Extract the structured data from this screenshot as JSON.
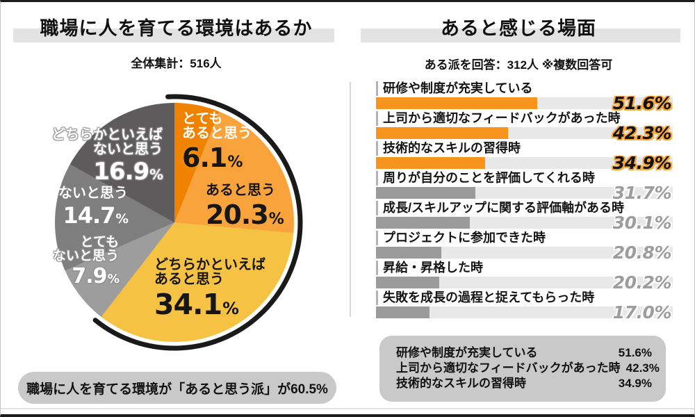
{
  "left": {
    "title": "職場に人を育てる環境はあるか",
    "subtitle": "全体集計：516人",
    "footer": "職場に人を育てる環境が「あると思う派」が60.5%"
  },
  "right": {
    "title": "あると感じる場面",
    "subtitle": "ある派を回答：312人 ※複数回答可",
    "summary_rows": [
      {
        "label": "研修や制度が充実している",
        "value": "51.6%"
      },
      {
        "label": "上司から適切なフィードバックがあった時",
        "value": "42.3%"
      },
      {
        "label": "技術的なスキルの習得時",
        "value": "34.9%"
      }
    ]
  },
  "colors": {
    "accent_orange": "#f7941e",
    "bar_gray": "#9b9b9b",
    "bar_track": "#e8e8e8",
    "band_gray": "#e3e3e3",
    "pill_gray": "#c9c9c9",
    "arc_black": "#1a1a1a"
  },
  "chart_data": [
    {
      "type": "pie",
      "title": "職場に人を育てる環境はあるか",
      "sample_note": "全体集計：516人",
      "unit": "%",
      "start_angle": "top, clockwise",
      "highlight_arc": {
        "covers_percent": 60.5,
        "color": "#1a1a1a"
      },
      "segments": [
        {
          "id": "totemo-aru",
          "label": "とてもあると思う",
          "lines": [
            "とても",
            "あると思う"
          ],
          "value": 6.1,
          "color": "#ef8200"
        },
        {
          "id": "aru",
          "label": "あると思う",
          "lines": [
            "あると思う"
          ],
          "value": 20.3,
          "color": "#f8a33b"
        },
        {
          "id": "dochiraka-aru",
          "label": "どちらかといえばあると思う",
          "lines": [
            "どちらかといえば",
            "あると思う"
          ],
          "value": 34.1,
          "color": "#f5c243"
        },
        {
          "id": "totemo-nai",
          "label": "とてもないと思う",
          "lines": [
            "とても",
            "ないと思う"
          ],
          "value": 7.9,
          "color": "#9e9d9d"
        },
        {
          "id": "nai",
          "label": "ないと思う",
          "lines": [
            "ないと思う"
          ],
          "value": 14.7,
          "color": "#7f7e7e"
        },
        {
          "id": "dochiraka-nai",
          "label": "どちらかといえばないと思う",
          "lines": [
            "どちらかといえば",
            "ないと思う"
          ],
          "value": 16.9,
          "color": "#5d5b5b"
        }
      ]
    },
    {
      "type": "bar",
      "title": "あると感じる場面",
      "sample_note": "ある派を回答：312人 ※複数回答可",
      "unit": "%",
      "orientation": "horizontal",
      "highlight_count": 3,
      "bar_color_highlight": "#f7941e",
      "bar_color_default": "#9b9b9b",
      "categories": [
        "研修や制度が充実している",
        "上司から適切なフィードバックがあった時",
        "技術的なスキルの習得時",
        "周りが自分のことを評価してくれる時",
        "成長/スキルアップに関する評価軸がある時",
        "プロジェクトに参加できた時",
        "昇給・昇格した時",
        "失敗を成長の過程と捉えてもらった時"
      ],
      "values": [
        51.6,
        42.3,
        34.9,
        31.7,
        30.1,
        20.8,
        20.2,
        17.0
      ]
    }
  ]
}
